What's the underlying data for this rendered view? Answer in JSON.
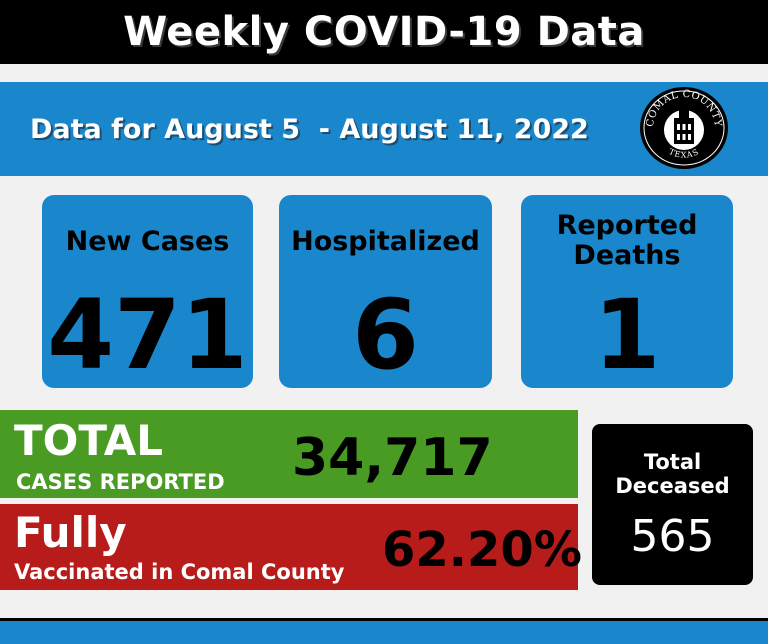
{
  "header": {
    "title": "Weekly COVID-19 Data"
  },
  "dates": {
    "range": "Data for August 5  - August 11, 2022"
  },
  "seal": {
    "top_text": "COMAL COUNTY",
    "bottom_text": "TEXAS",
    "icon": "courthouse-icon"
  },
  "cards": {
    "new_cases": {
      "label": "New Cases",
      "value": "471"
    },
    "hospitalized": {
      "label": "Hospitalized",
      "value": "6"
    },
    "deaths": {
      "label_line1": "Reported",
      "label_line2": "Deaths",
      "value": "1"
    }
  },
  "totals": {
    "title": "TOTAL",
    "subtitle": "CASES REPORTED",
    "value": "34,717"
  },
  "vaccinated": {
    "title": "Fully",
    "subtitle": "Vaccinated in Comal County",
    "value": "62.20%"
  },
  "deceased": {
    "label_line1": "Total",
    "label_line2": "Deceased",
    "value": "565"
  },
  "colors": {
    "blue": "#1a87cc",
    "green": "#4a9b24",
    "red": "#b71c1a",
    "black": "#000000"
  }
}
